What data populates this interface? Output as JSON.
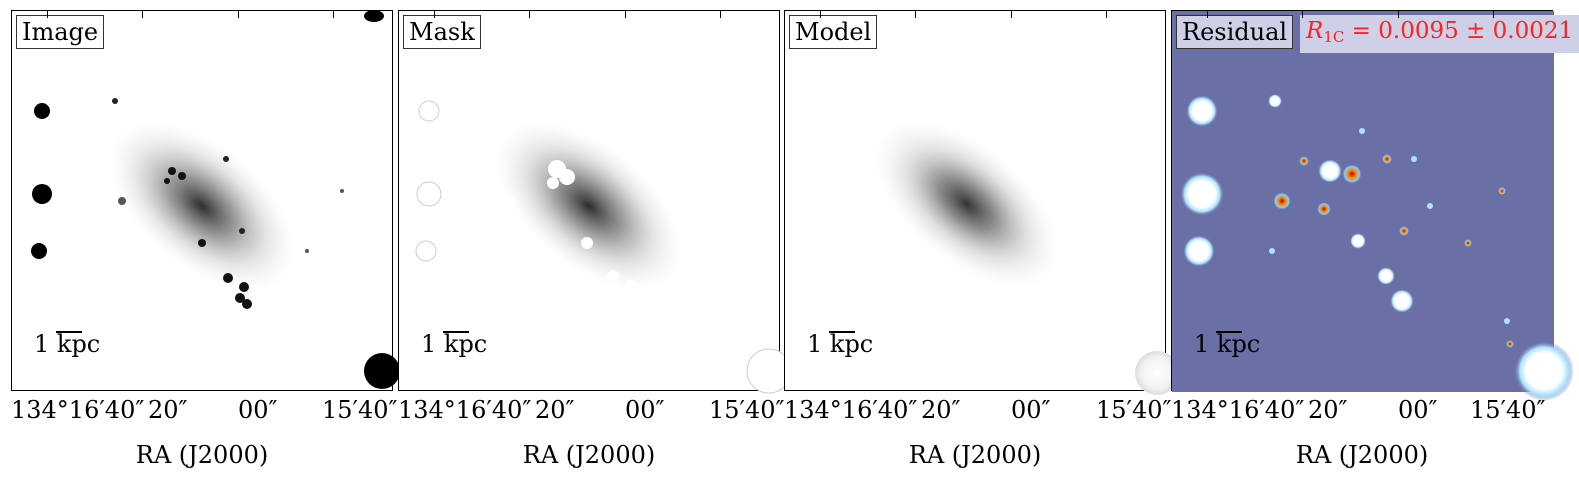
{
  "panels": [
    {
      "label": "Image",
      "scale_label": "1 kpc"
    },
    {
      "label": "Mask",
      "scale_label": "1 kpc"
    },
    {
      "label": "Model",
      "scale_label": "1 kpc"
    },
    {
      "label": "Residual",
      "scale_label": "1 kpc",
      "stat_symbol": "R",
      "stat_sub": "1C",
      "stat_rest": " = 0.0095 ± 0.0021"
    }
  ],
  "axis": {
    "xlabel": "RA (J2000)",
    "tick_labels": [
      "134°16′40″",
      "20″",
      "00″",
      "15′40″"
    ]
  },
  "colors": {
    "residual_background": "#6a6fa6",
    "stat_text": "#ff2222"
  }
}
